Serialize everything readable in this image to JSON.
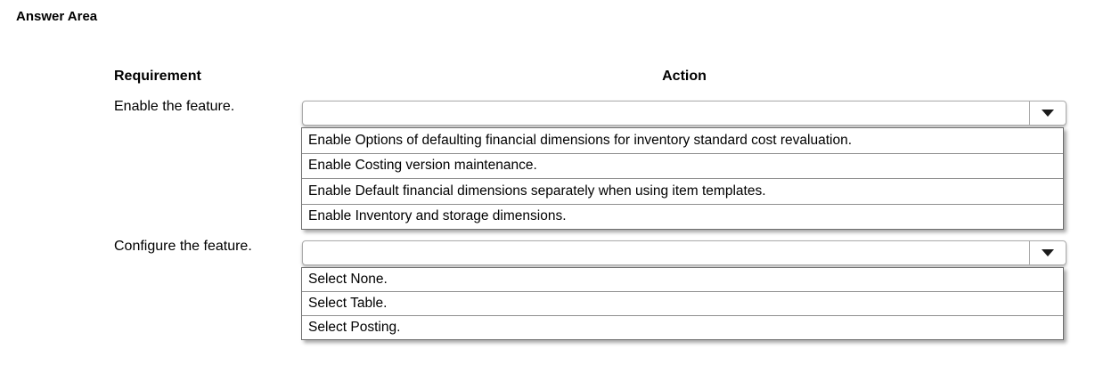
{
  "page": {
    "title": "Answer Area"
  },
  "colors": {
    "background": "#ffffff",
    "text": "#000000",
    "combo_border": "#ababab",
    "list_border": "#6e6e6e",
    "row_divider": "#8f8f8f",
    "arrow": "#1a1a1a"
  },
  "table": {
    "headers": {
      "requirement": "Requirement",
      "action": "Action"
    },
    "rows": [
      {
        "label": "Enable the feature.",
        "dropdown": {
          "selected_value": "",
          "state": "open",
          "options": [
            "Enable Options of defaulting financial dimensions for inventory standard cost revaluation.",
            "Enable Costing version maintenance.",
            "Enable Default financial dimensions separately when using item templates.",
            "Enable Inventory and storage dimensions."
          ]
        }
      },
      {
        "label": "Configure the feature.",
        "dropdown": {
          "selected_value": "",
          "state": "open",
          "options": [
            "Select None.",
            "Select Table.",
            "Select Posting."
          ]
        }
      }
    ]
  }
}
